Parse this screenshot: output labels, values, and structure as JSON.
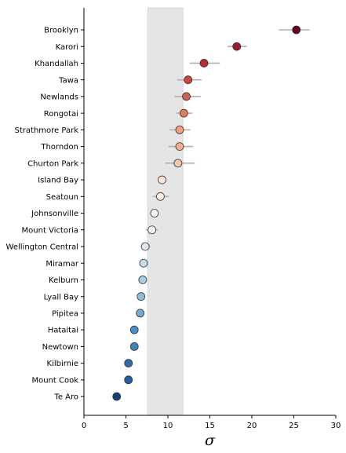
{
  "chart_data": {
    "type": "scatter",
    "xlabel": "σ",
    "ylabel": "",
    "xlim": [
      0,
      30
    ],
    "xticks": [
      0,
      5,
      10,
      15,
      20,
      25,
      30
    ],
    "grid": false,
    "shaded_band": {
      "x0": 7.6,
      "x1": 11.8,
      "color": "#e5e5e5"
    },
    "error_color": "#b0b0b0",
    "colormap": "RdBu_r",
    "points": [
      {
        "label": "Brooklyn",
        "x": 25.3,
        "lo": 23.2,
        "hi": 26.9,
        "color": "#67001f"
      },
      {
        "label": "Karori",
        "x": 18.2,
        "lo": 17.1,
        "hi": 19.4,
        "color": "#9b1a2b"
      },
      {
        "label": "Khandallah",
        "x": 14.3,
        "lo": 12.6,
        "hi": 16.2,
        "color": "#b92a35"
      },
      {
        "label": "Tawa",
        "x": 12.4,
        "lo": 11.1,
        "hi": 14.0,
        "color": "#c94741"
      },
      {
        "label": "Newlands",
        "x": 12.2,
        "lo": 10.8,
        "hi": 13.9,
        "color": "#d25e4e"
      },
      {
        "label": "Rongotai",
        "x": 11.9,
        "lo": 11.0,
        "hi": 12.9,
        "color": "#e0795f"
      },
      {
        "label": "Strathmore Park",
        "x": 11.4,
        "lo": 10.2,
        "hi": 12.7,
        "color": "#f2a180"
      },
      {
        "label": "Thorndon",
        "x": 11.4,
        "lo": 10.1,
        "hi": 13.0,
        "color": "#f4ae8d"
      },
      {
        "label": "Churton Park",
        "x": 11.2,
        "lo": 9.7,
        "hi": 13.2,
        "color": "#f8c7ab"
      },
      {
        "label": "Island Bay",
        "x": 9.3,
        "lo": 8.9,
        "hi": 9.7,
        "color": "#fbe3d5"
      },
      {
        "label": "Seatoun",
        "x": 9.1,
        "lo": 8.2,
        "hi": 10.1,
        "color": "#fcebe0"
      },
      {
        "label": "Johnsonville",
        "x": 8.4,
        "lo": 7.9,
        "hi": 8.9,
        "color": "#f9f4f1"
      },
      {
        "label": "Mount Victoria",
        "x": 8.1,
        "lo": 7.4,
        "hi": 8.8,
        "color": "#f2f5f7"
      },
      {
        "label": "Wellington Central",
        "x": 7.3,
        "lo": 6.8,
        "hi": 7.9,
        "color": "#dde9f2"
      },
      {
        "label": "Miramar",
        "x": 7.1,
        "lo": 6.8,
        "hi": 7.4,
        "color": "#c5dcec"
      },
      {
        "label": "Kelburn",
        "x": 7.0,
        "lo": 6.6,
        "hi": 7.3,
        "color": "#a9cde3"
      },
      {
        "label": "Lyall Bay",
        "x": 6.8,
        "lo": 6.3,
        "hi": 7.3,
        "color": "#8ebfdc"
      },
      {
        "label": "Pipitea",
        "x": 6.7,
        "lo": 6.4,
        "hi": 7.0,
        "color": "#6faacf"
      },
      {
        "label": "Hataitai",
        "x": 6.0,
        "lo": 5.7,
        "hi": 6.3,
        "color": "#4a90c2"
      },
      {
        "label": "Newtown",
        "x": 6.0,
        "lo": 5.7,
        "hi": 6.3,
        "color": "#3c84bc"
      },
      {
        "label": "Kilbirnie",
        "x": 5.3,
        "lo": 5.0,
        "hi": 5.6,
        "color": "#2a6db0"
      },
      {
        "label": "Mount Cook",
        "x": 5.3,
        "lo": 5.0,
        "hi": 5.6,
        "color": "#215fa5"
      },
      {
        "label": "Te Aro",
        "x": 3.9,
        "lo": 3.6,
        "hi": 4.2,
        "color": "#163e76"
      }
    ]
  }
}
